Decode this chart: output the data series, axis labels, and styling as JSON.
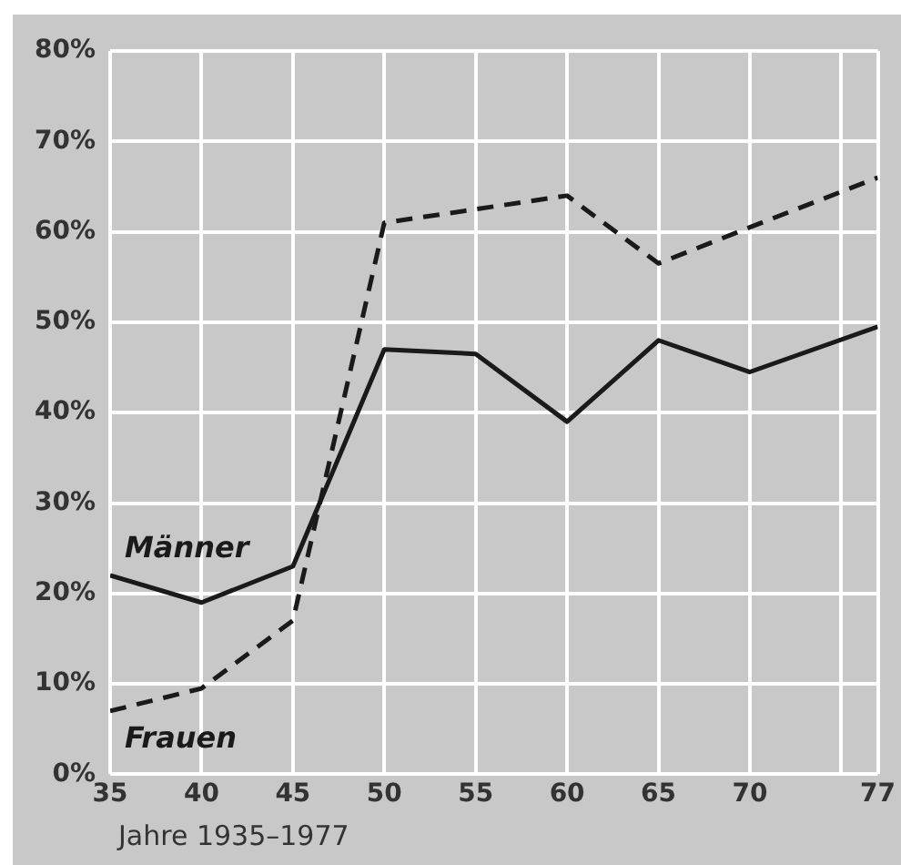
{
  "chart_data": {
    "type": "line",
    "xlabel": "Jahre 1935–1977",
    "x": [
      35,
      40,
      45,
      50,
      55,
      60,
      65,
      70,
      77
    ],
    "series": [
      {
        "name": "Männer",
        "color": "#1a1a1a",
        "line_style": "solid",
        "values": [
          22,
          19,
          23,
          47,
          46.5,
          39,
          48,
          44.5,
          49.5
        ]
      },
      {
        "name": "Frauen",
        "color": "#1a1a1a",
        "line_style": "dashed",
        "values": [
          7,
          9.5,
          17,
          61,
          62.5,
          64,
          56.5,
          60.5,
          66
        ]
      }
    ],
    "xlim": [
      35,
      77
    ],
    "xticks": [
      35,
      40,
      45,
      50,
      55,
      60,
      65,
      70,
      {
        "value": 75,
        "label": null
      },
      77
    ],
    "ylim": [
      0,
      80
    ],
    "yticks": [
      {
        "value": 0,
        "label": "0%"
      },
      {
        "value": 10,
        "label": "10%"
      },
      {
        "value": 20,
        "label": "20%"
      },
      {
        "value": 30,
        "label": "30%"
      },
      {
        "value": 40,
        "label": "40%"
      },
      {
        "value": 50,
        "label": "50%"
      },
      {
        "value": 60,
        "label": "60%"
      },
      {
        "value": 70,
        "label": "70%"
      },
      {
        "value": 80,
        "label": "80%"
      }
    ],
    "grid": true,
    "legend": false,
    "marker": "none"
  }
}
